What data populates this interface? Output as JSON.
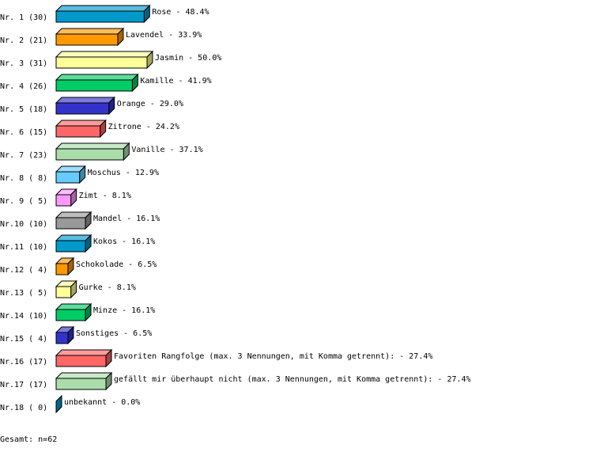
{
  "chart_data": {
    "type": "bar",
    "orientation": "horizontal",
    "style": "3d",
    "rows": [
      {
        "rank": "Nr. 1",
        "count": 30,
        "label": "Rose",
        "pct": 48.4,
        "color": "#0099cc"
      },
      {
        "rank": "Nr. 2",
        "count": 21,
        "label": "Lavendel",
        "pct": 33.9,
        "color": "#ff9900"
      },
      {
        "rank": "Nr. 3",
        "count": 31,
        "label": "Jasmin",
        "pct": 50.0,
        "color": "#ffff99"
      },
      {
        "rank": "Nr. 4",
        "count": 26,
        "label": "Kamille",
        "pct": 41.9,
        "color": "#00cc66"
      },
      {
        "rank": "Nr. 5",
        "count": 18,
        "label": "Orange",
        "pct": 29.0,
        "color": "#3333cc"
      },
      {
        "rank": "Nr. 6",
        "count": 15,
        "label": "Zitrone",
        "pct": 24.2,
        "color": "#ff6666"
      },
      {
        "rank": "Nr. 7",
        "count": 23,
        "label": "Vanille",
        "pct": 37.1,
        "color": "#aaddaa"
      },
      {
        "rank": "Nr. 8",
        "count": 8,
        "label": "Moschus",
        "pct": 12.9,
        "color": "#66ccff"
      },
      {
        "rank": "Nr. 9",
        "count": 5,
        "label": "Zimt",
        "pct": 8.1,
        "color": "#ff99ff"
      },
      {
        "rank": "Nr.10",
        "count": 10,
        "label": "Mandel",
        "pct": 16.1,
        "color": "#999999"
      },
      {
        "rank": "Nr.11",
        "count": 10,
        "label": "Kokos",
        "pct": 16.1,
        "color": "#0099cc"
      },
      {
        "rank": "Nr.12",
        "count": 4,
        "label": "Schokolade",
        "pct": 6.5,
        "color": "#ff9900"
      },
      {
        "rank": "Nr.13",
        "count": 5,
        "label": "Gurke",
        "pct": 8.1,
        "color": "#ffff99"
      },
      {
        "rank": "Nr.14",
        "count": 10,
        "label": "Minze",
        "pct": 16.1,
        "color": "#00cc66"
      },
      {
        "rank": "Nr.15",
        "count": 4,
        "label": "Sonstiges",
        "pct": 6.5,
        "color": "#3333cc"
      },
      {
        "rank": "Nr.16",
        "count": 17,
        "label": "Favoriten Rangfolge (max. 3 Nennungen, mit Komma getrennt):",
        "pct": 27.4,
        "color": "#ff6666"
      },
      {
        "rank": "Nr.17",
        "count": 17,
        "label": "gefällt mir überhaupt nicht (max. 3 Nennungen, mit Komma getrennt):",
        "pct": 27.4,
        "color": "#aaddaa"
      },
      {
        "rank": "Nr.18",
        "count": 0,
        "label": "unbekannt",
        "pct": 0.0,
        "color": "#0099cc"
      }
    ],
    "footer": "Gesamt: n=62"
  }
}
